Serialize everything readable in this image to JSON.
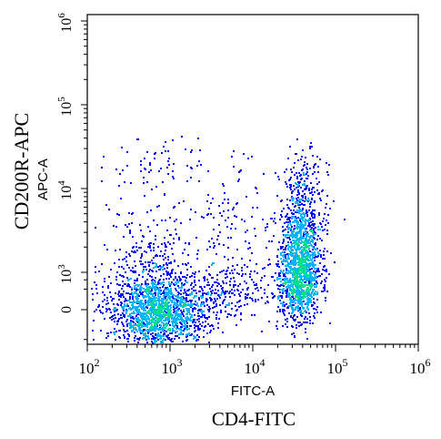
{
  "chart_data": {
    "type": "scatter",
    "subtype": "flow-cytometry-density-dot-plot",
    "xlabel": "FITC-A",
    "ylabel": "APC-A",
    "x_marker_label": "CD4-FITC",
    "y_marker_label": "CD200R-APC",
    "x_scale": "log",
    "y_scale": "logicle",
    "xlim": [
      100,
      1000000
    ],
    "x_ticks": [
      {
        "value": 100,
        "base": "10",
        "exp": "2"
      },
      {
        "value": 1000,
        "base": "10",
        "exp": "3"
      },
      {
        "value": 10000,
        "base": "10",
        "exp": "4"
      },
      {
        "value": 100000,
        "base": "10",
        "exp": "5"
      },
      {
        "value": 1000000,
        "base": "10",
        "exp": "6"
      }
    ],
    "y_ticks": [
      {
        "value": 0,
        "text": "0"
      },
      {
        "value": 1000,
        "base": "10",
        "exp": "3"
      },
      {
        "value": 10000,
        "base": "10",
        "exp": "4"
      },
      {
        "value": 100000,
        "base": "10",
        "exp": "5"
      },
      {
        "value": 1000000,
        "base": "10",
        "exp": "6"
      }
    ],
    "density_colors": [
      "#0000ff",
      "#00b4ff",
      "#00e08c",
      "#ffff00"
    ],
    "populations": [
      {
        "x_center": 700,
        "y_center": 0,
        "x_spread_decades": 0.3,
        "y_spread": 0.45,
        "count": 1700
      },
      {
        "x_center": 600,
        "y_center": 1500,
        "x_spread_decades": 0.25,
        "y_spread": 0.5,
        "count": 160
      },
      {
        "x_center": 5000,
        "y_center": 150,
        "x_spread_decades": 0.25,
        "y_spread": 0.35,
        "count": 190
      },
      {
        "x_center": 5000,
        "y_center": 2500,
        "x_spread_decades": 0.25,
        "y_spread": 0.8,
        "count": 90
      },
      {
        "x_center": 35000,
        "y_center": 400,
        "x_spread_decades": 0.13,
        "y_spread": 0.5,
        "count": 850
      },
      {
        "x_center": 38000,
        "y_center": 2500,
        "x_spread_decades": 0.12,
        "y_spread": 0.55,
        "count": 650
      },
      {
        "x_center": 40000,
        "y_center": 10000,
        "x_spread_decades": 0.12,
        "y_spread": 0.45,
        "count": 160
      },
      {
        "x_center": 800,
        "y_center": 20000,
        "x_spread_decades": 0.2,
        "y_spread": 0.4,
        "count": 35
      }
    ]
  }
}
